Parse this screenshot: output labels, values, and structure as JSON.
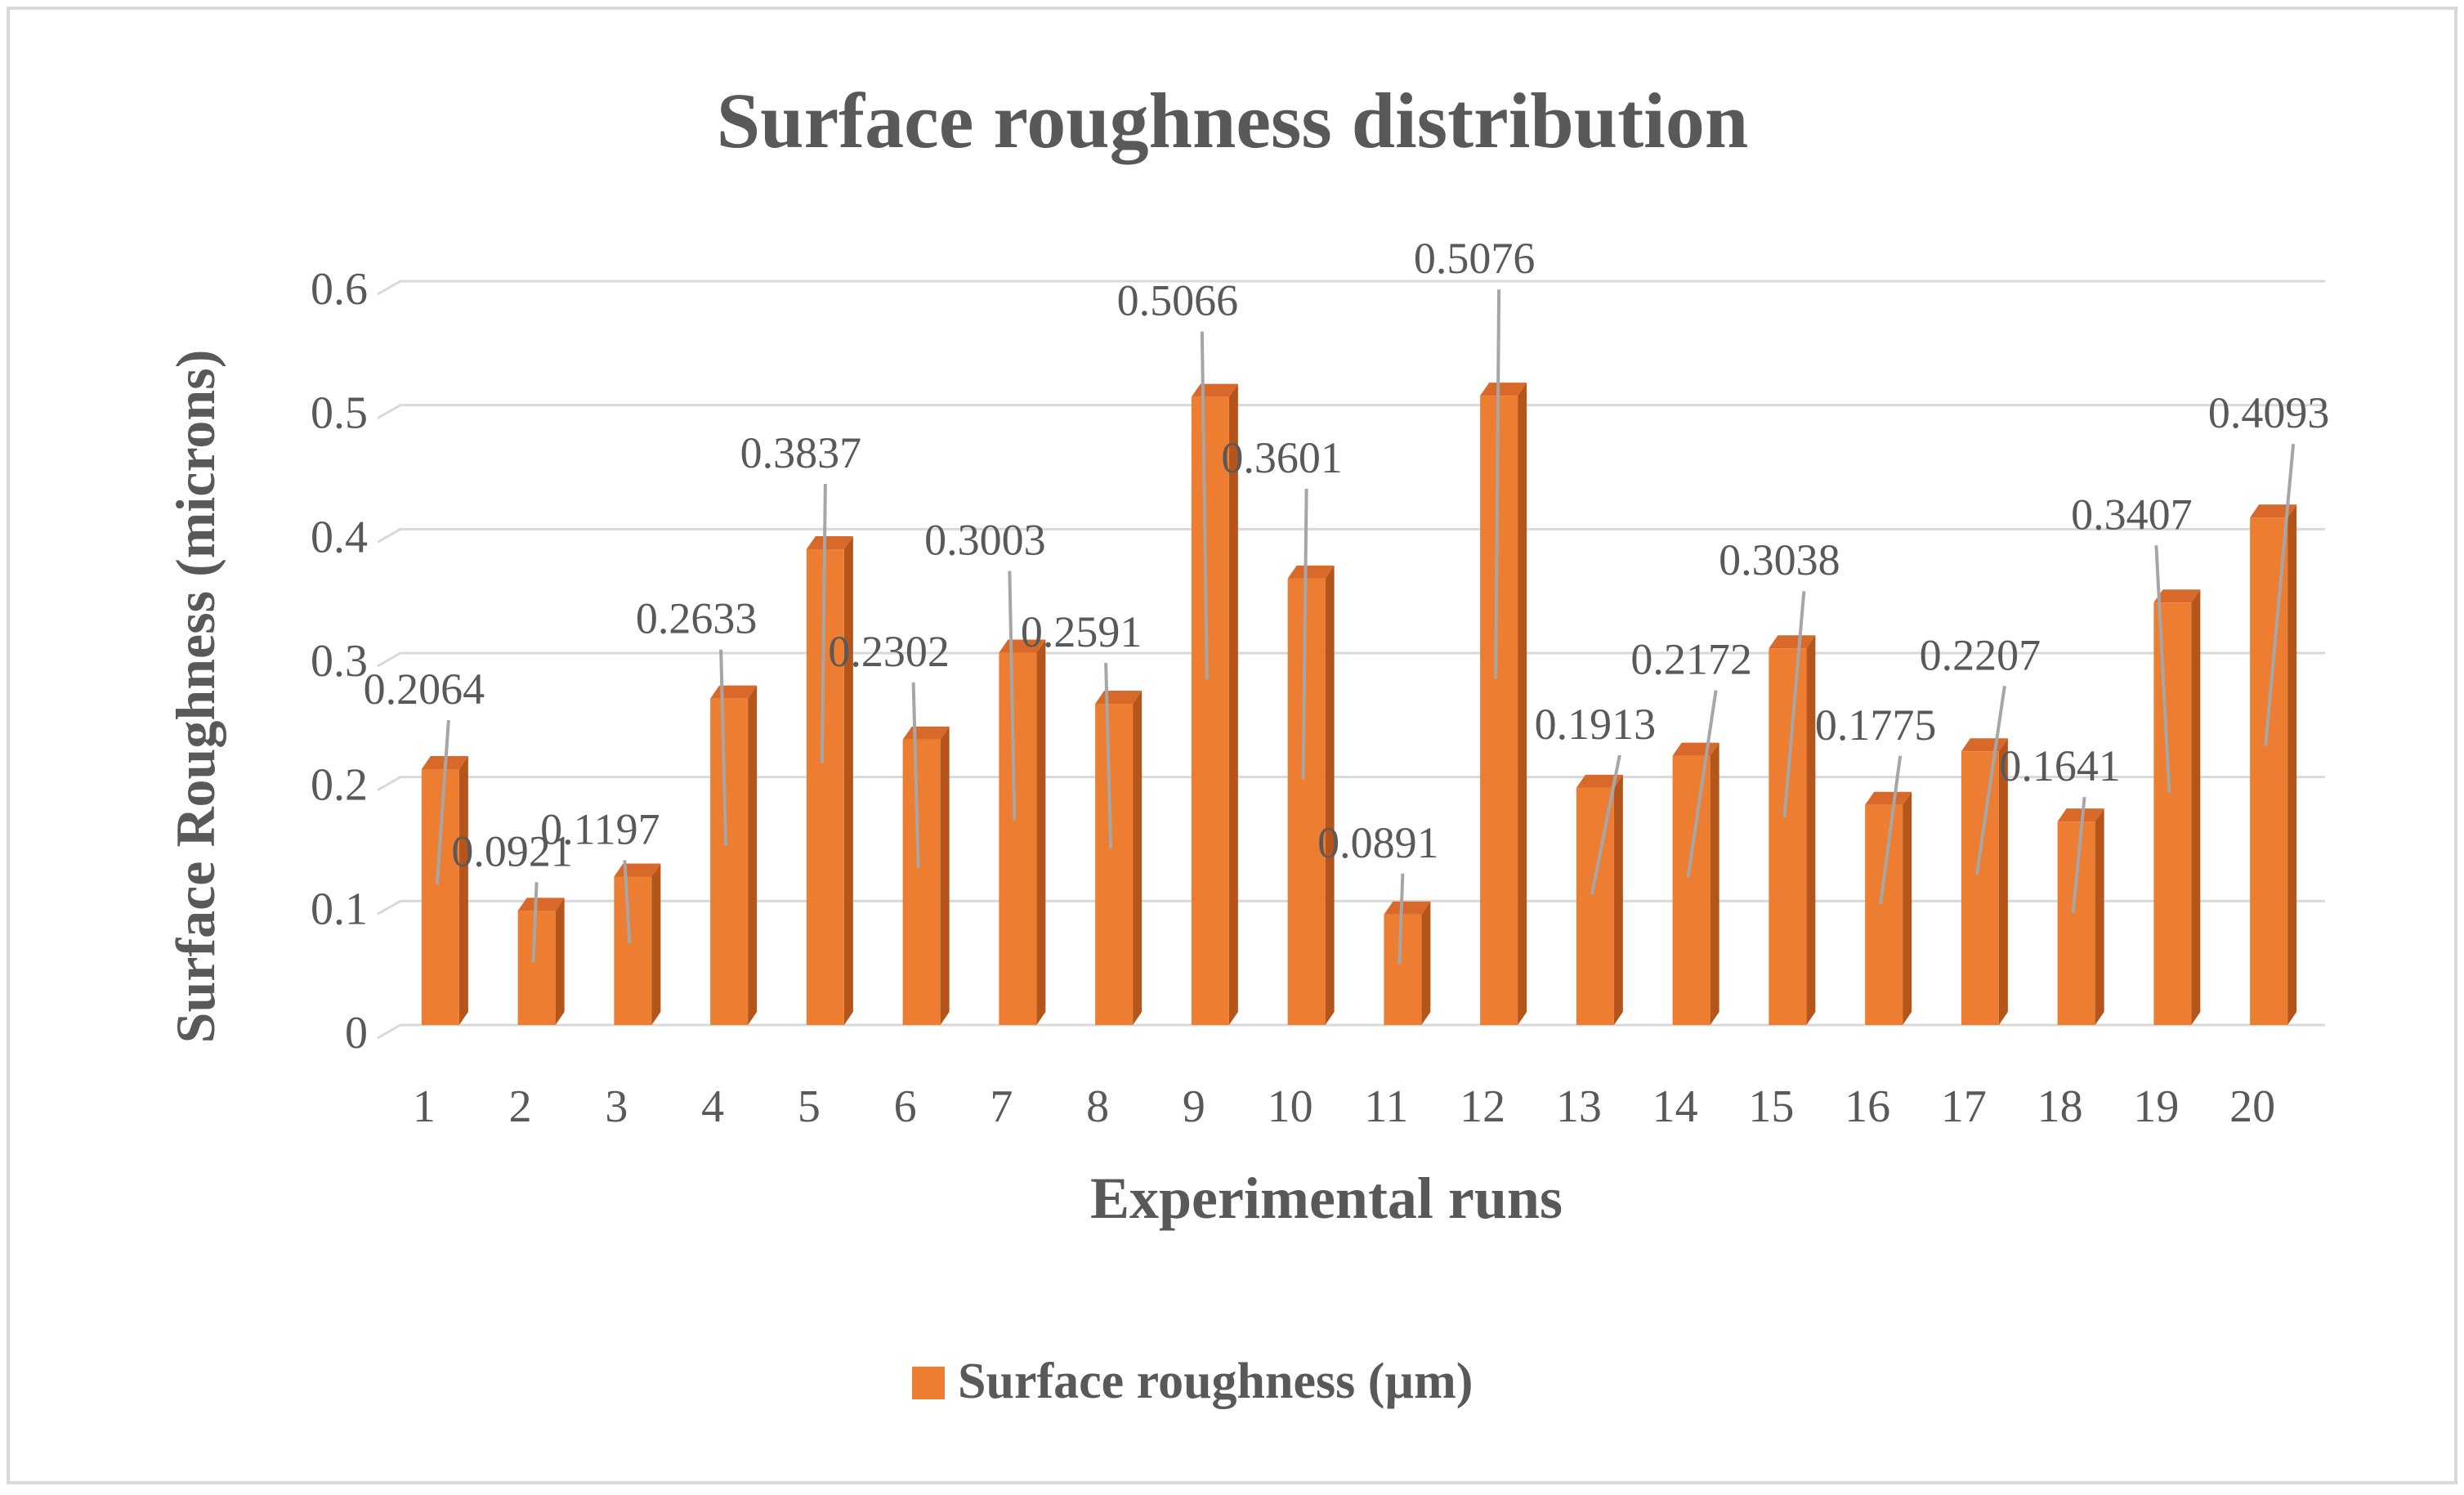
{
  "chart_data": {
    "type": "bar",
    "title": "Surface roughness distribution",
    "xlabel": "Experimental runs",
    "ylabel": "Surface Roughness (microns)",
    "ylim": [
      0,
      0.6
    ],
    "yticks": [
      "0",
      "0.1",
      "0.2",
      "0.3",
      "0.4",
      "0.5",
      "0.6"
    ],
    "grid": true,
    "legend_position": "bottom",
    "categories": [
      "1",
      "2",
      "3",
      "4",
      "5",
      "6",
      "7",
      "8",
      "9",
      "10",
      "11",
      "12",
      "13",
      "14",
      "15",
      "16",
      "17",
      "18",
      "19",
      "20"
    ],
    "series": [
      {
        "name": "Surface roughness (µm)",
        "values": [
          0.2064,
          0.0921,
          0.1197,
          0.2633,
          0.3837,
          0.2302,
          0.3003,
          0.2591,
          0.5066,
          0.3601,
          0.0891,
          0.5076,
          0.1913,
          0.2172,
          0.3038,
          0.1775,
          0.2207,
          0.1641,
          0.3407,
          0.4093
        ],
        "labels": [
          "0.2064",
          "0.0921",
          "0.1197",
          "0.2633",
          "0.3837",
          "0.2302",
          "0.3003",
          "0.2591",
          "0.5066",
          "0.3601",
          "0.0891",
          "0.5076",
          "0.1913",
          "0.2172",
          "0.3038",
          "0.1775",
          "0.2207",
          "0.1641",
          "0.3407",
          "0.4093"
        ]
      }
    ],
    "colors": {
      "bar_front": "#ed7d31",
      "bar_side": "#b4561b",
      "bar_top": "#d9692a",
      "grid": "#d9d9d9",
      "text": "#595959",
      "leader": "#a6a6a6",
      "frame": "#d9d9d9"
    }
  }
}
